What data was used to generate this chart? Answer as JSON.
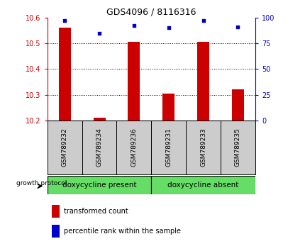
{
  "title": "GDS4096 / 8116316",
  "samples": [
    "GSM789232",
    "GSM789234",
    "GSM789236",
    "GSM789231",
    "GSM789233",
    "GSM789235"
  ],
  "red_values": [
    10.56,
    10.21,
    10.505,
    10.305,
    10.505,
    10.32
  ],
  "blue_values": [
    97,
    85,
    92,
    90,
    97,
    91
  ],
  "ylim_left": [
    10.2,
    10.6
  ],
  "ylim_right": [
    0,
    100
  ],
  "yticks_left": [
    10.2,
    10.3,
    10.4,
    10.5,
    10.6
  ],
  "yticks_right": [
    0,
    25,
    50,
    75,
    100
  ],
  "grid_lines": [
    10.3,
    10.4,
    10.5
  ],
  "group1_label": "doxycycline present",
  "group2_label": "doxycycline absent",
  "protocol_label": "growth protocol",
  "legend_red": "transformed count",
  "legend_blue": "percentile rank within the sample",
  "bar_color": "#cc0000",
  "dot_color": "#0000cc",
  "group_color": "#66dd66",
  "sample_box_color": "#cccccc",
  "tick_color_left": "#cc0000",
  "tick_color_right": "#0000cc",
  "base_value": 10.2,
  "bar_width": 0.35
}
